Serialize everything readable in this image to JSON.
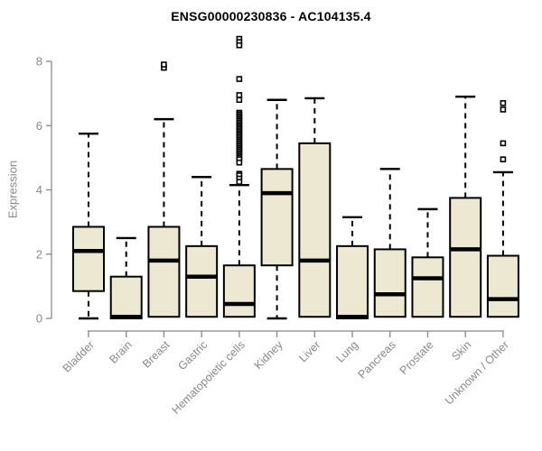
{
  "title": "ENSG00000230836 - AC104135.4",
  "colors": {
    "box_fill": "#EDE8D1",
    "box_stroke": "#000000",
    "median": "#000000",
    "whisker": "#000000",
    "outlier_fill": "#FFFFFF",
    "axis": "#888888",
    "tick_label": "#888888",
    "title": "#000000",
    "background": "#FFFFFF"
  },
  "chart_data": {
    "type": "boxplot",
    "title": "ENSG00000230836 - AC104135.4",
    "xlabel": "",
    "ylabel": "Expression",
    "ylim": [
      0,
      8.8
    ],
    "yticks": [
      0,
      2,
      4,
      6,
      8
    ],
    "grid": false,
    "legend": false,
    "categories": [
      "Bladder",
      "Brain",
      "Breast",
      "Gastric",
      "Hematopoietic cells",
      "Kidney",
      "Liver",
      "Lung",
      "Pancreas",
      "Prostate",
      "Skin",
      "Unknown / Other"
    ],
    "boxes": [
      {
        "category": "Bladder",
        "low": 0,
        "q1": 0.85,
        "median": 2.1,
        "q3": 2.85,
        "high": 5.75,
        "outliers": []
      },
      {
        "category": "Brain",
        "low": null,
        "q1": 0,
        "median": 0.05,
        "q3": 1.3,
        "high": 2.5,
        "outliers": []
      },
      {
        "category": "Breast",
        "low": null,
        "q1": 0.05,
        "median": 1.8,
        "q3": 2.85,
        "high": 6.2,
        "outliers": [
          7.8,
          7.9
        ]
      },
      {
        "category": "Gastric",
        "low": null,
        "q1": 0.05,
        "median": 1.3,
        "q3": 2.25,
        "high": 4.4,
        "outliers": []
      },
      {
        "category": "Hematopoietic cells",
        "low": null,
        "q1": 0.05,
        "median": 0.45,
        "q3": 1.65,
        "high": 4.15,
        "outliers": [
          8.7,
          8.6,
          8.5,
          7.45,
          6.95,
          6.8,
          6.4,
          6.35,
          6.3,
          6.25,
          6.2,
          6.15,
          6.1,
          6.05,
          6.0,
          5.95,
          5.9,
          5.85,
          5.8,
          5.75,
          5.7,
          5.65,
          5.6,
          5.55,
          5.5,
          5.45,
          5.4,
          5.35,
          5.3,
          5.25,
          5.2,
          5.15,
          5.1,
          5.05,
          5.0,
          4.95,
          4.85,
          4.5,
          4.45,
          4.35,
          4.25
        ]
      },
      {
        "category": "Kidney",
        "low": 0,
        "q1": 1.65,
        "median": 3.9,
        "q3": 4.65,
        "high": 6.8,
        "outliers": []
      },
      {
        "category": "Liver",
        "low": null,
        "q1": 0.05,
        "median": 1.8,
        "q3": 5.45,
        "high": 6.85,
        "outliers": []
      },
      {
        "category": "Lung",
        "low": null,
        "q1": 0,
        "median": 0.05,
        "q3": 2.25,
        "high": 3.15,
        "outliers": []
      },
      {
        "category": "Pancreas",
        "low": null,
        "q1": 0.05,
        "median": 0.75,
        "q3": 2.15,
        "high": 4.65,
        "outliers": []
      },
      {
        "category": "Prostate",
        "low": null,
        "q1": 0.05,
        "median": 1.25,
        "q3": 1.9,
        "high": 3.4,
        "outliers": []
      },
      {
        "category": "Skin",
        "low": null,
        "q1": 0.05,
        "median": 2.15,
        "q3": 3.75,
        "high": 6.9,
        "outliers": []
      },
      {
        "category": "Unknown / Other",
        "low": null,
        "q1": 0.05,
        "median": 0.6,
        "q3": 1.95,
        "high": 4.55,
        "outliers": [
          4.95,
          5.45,
          6.5,
          6.7
        ]
      }
    ]
  }
}
